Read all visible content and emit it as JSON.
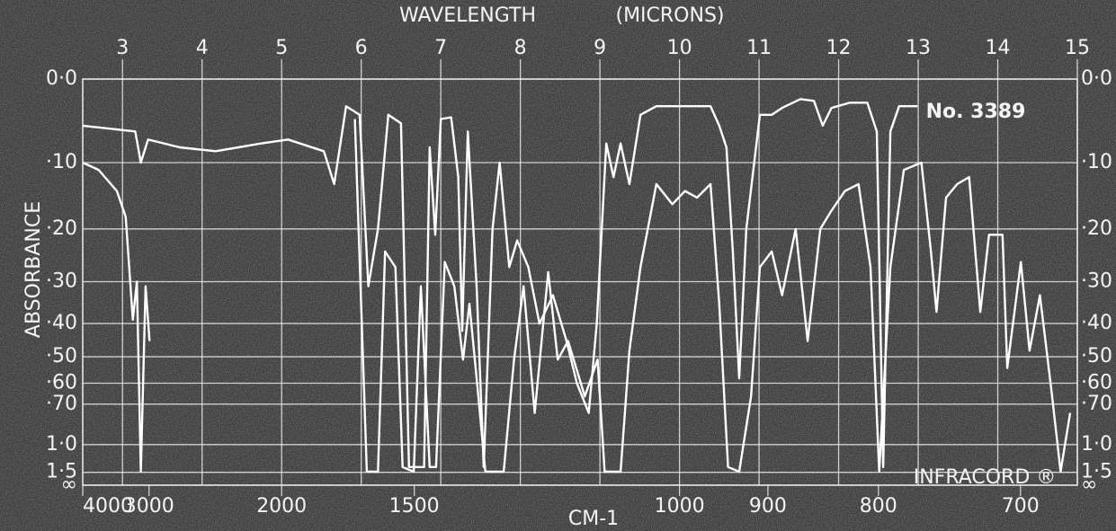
{
  "chart_data": {
    "type": "line",
    "title": "WAVELENGTH",
    "subtitle": "(MICRONS)",
    "y_label": "ABSORBANCE",
    "x2_label": "CM-1",
    "annotations": [
      "No. 3389",
      "INFRACORD ®"
    ],
    "xlim": [
      2.5,
      15
    ],
    "xticks": [
      3,
      4,
      5,
      6,
      7,
      8,
      9,
      10,
      11,
      12,
      13,
      14,
      15
    ],
    "x2scale": "reciprocal",
    "x2ticks": [
      4000,
      3000,
      2000,
      1500,
      1000,
      900,
      800,
      700
    ],
    "yscale": "transmittance",
    "ylim": [
      0,
      null
    ],
    "yticks": [
      {
        "value": 0,
        "label": "0·0"
      },
      {
        "value": 0.1,
        "label": "·10"
      },
      {
        "value": 0.2,
        "label": "·20"
      },
      {
        "value": 0.3,
        "label": "·30"
      },
      {
        "value": 0.4,
        "label": "·40"
      },
      {
        "value": 0.5,
        "label": "·50"
      },
      {
        "value": 0.6,
        "label": "·60"
      },
      {
        "value": 0.7,
        "label": "·70"
      },
      {
        "value": 1.0,
        "label": "1·0"
      },
      {
        "value": 1.5,
        "label": "1·5"
      },
      {
        "value": null,
        "label": "∞"
      }
    ],
    "grid": true,
    "series": [
      {
        "color": "#ffffff",
        "x": [
          2.5,
          3.16,
          3.23,
          3.32,
          3.72,
          4.17,
          4.74,
          5.08,
          5.53,
          5.66,
          5.81,
          5.98,
          6.09,
          6.21,
          6.34,
          6.5,
          6.6,
          6.79,
          6.86,
          6.93,
          7.0,
          7.13,
          7.22,
          7.27,
          7.34,
          7.45,
          7.54,
          7.65,
          7.74,
          7.86,
          7.96,
          8.1,
          8.24,
          8.41,
          8.58,
          8.71,
          8.86,
          8.96,
          9.08,
          9.17,
          9.26,
          9.37,
          9.51,
          9.71,
          10.39,
          10.5,
          10.59,
          10.67,
          10.75,
          10.84,
          11.01,
          11.16,
          11.29,
          11.52,
          11.69,
          11.8,
          11.91,
          12.14,
          12.36,
          12.48,
          12.56,
          12.65,
          12.76,
          12.99
        ],
        "values": [
          0.053,
          0.06,
          0.1,
          0.07,
          0.08,
          0.085,
          0.075,
          0.07,
          0.085,
          0.13,
          0.03,
          0.04,
          0.31,
          0.2,
          0.04,
          0.05,
          1.35,
          1.35,
          0.08,
          0.21,
          0.045,
          0.043,
          0.12,
          0.42,
          0.06,
          0.31,
          1.35,
          0.2,
          0.1,
          0.27,
          0.22,
          0.27,
          0.4,
          0.33,
          0.45,
          0.6,
          0.75,
          0.4,
          0.075,
          0.12,
          0.075,
          0.13,
          0.04,
          0.03,
          0.03,
          0.053,
          0.08,
          0.24,
          0.58,
          0.2,
          0.04,
          0.04,
          0.032,
          0.022,
          0.024,
          0.053,
          0.032,
          0.026,
          0.026,
          0.06,
          1.35,
          0.06,
          0.03,
          0.03
        ]
      },
      {
        "color": "#ffffff",
        "x": [
          2.5,
          2.7,
          2.93,
          3.04,
          3.13,
          3.18,
          3.23,
          3.29,
          3.34,
          3.5,
          5.92,
          6.07,
          6.21,
          6.3,
          6.43,
          6.52,
          6.66,
          6.75,
          6.86,
          6.94,
          7.05,
          7.17,
          7.28,
          7.36,
          7.47,
          7.56,
          7.79,
          7.92,
          8.04,
          8.18,
          8.35,
          8.47,
          8.6,
          8.81,
          8.97,
          9.06,
          9.26,
          9.37,
          9.51,
          9.71,
          9.91,
          10.07,
          10.22,
          10.39,
          10.5,
          10.61,
          10.75,
          10.9,
          11.01,
          11.16,
          11.29,
          11.46,
          11.61,
          11.77,
          11.91,
          12.08,
          12.25,
          12.4,
          12.51,
          12.65,
          12.82,
          13.04,
          13.16,
          13.23,
          13.35,
          13.49,
          13.64,
          13.78,
          13.89,
          14.06,
          14.12,
          14.29,
          14.4,
          14.53,
          14.68,
          14.79,
          14.91
        ],
        "values": [
          0.1,
          0.11,
          0.14,
          0.18,
          0.39,
          0.3,
          1.48,
          0.31,
          0.45,
          null,
          0.045,
          1.48,
          1.48,
          0.24,
          0.27,
          1.35,
          1.48,
          0.31,
          1.35,
          1.35,
          0.26,
          0.31,
          0.51,
          0.35,
          0.65,
          1.48,
          1.48,
          0.51,
          0.31,
          0.75,
          0.28,
          0.51,
          0.45,
          0.66,
          0.51,
          1.48,
          1.48,
          0.48,
          0.27,
          0.13,
          0.16,
          0.14,
          0.15,
          0.13,
          0.35,
          1.35,
          1.48,
          0.66,
          0.27,
          0.24,
          0.33,
          0.2,
          0.45,
          0.2,
          0.17,
          0.14,
          0.13,
          0.27,
          1.48,
          0.27,
          0.11,
          0.1,
          0.24,
          0.37,
          0.15,
          0.13,
          0.12,
          0.37,
          0.21,
          0.21,
          0.54,
          0.26,
          0.48,
          0.33,
          0.65,
          1.48,
          0.75
        ]
      }
    ]
  }
}
